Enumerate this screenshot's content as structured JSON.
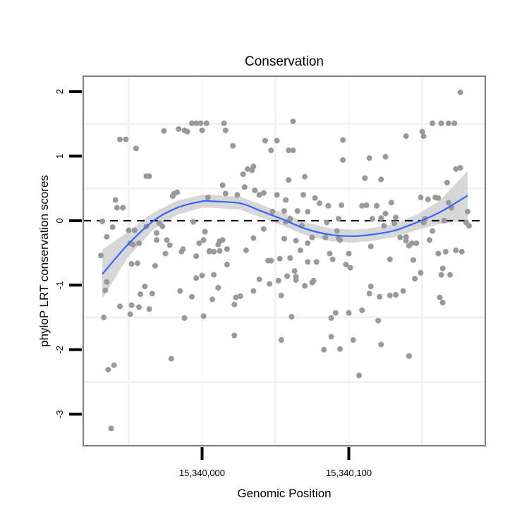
{
  "chart_data": {
    "type": "scatter",
    "title": "Conservation",
    "xlabel": "Genomic Position",
    "ylabel": "phyloP LRT conservation scores",
    "xlim": [
      15339919,
      15340193
    ],
    "ylim": [
      -3.49,
      2.24
    ],
    "x_ticks": [
      15340000,
      15340100
    ],
    "x_tick_labels": [
      "15,340,000",
      "15,340,100"
    ],
    "y_ticks": [
      2,
      1,
      0,
      -1,
      -2,
      -3
    ],
    "y_tick_labels": [
      "2",
      "1",
      "0",
      "-1",
      "-2",
      "-3"
    ],
    "x_minor_grid": [
      15339950,
      15340050,
      15340150
    ],
    "y_minor_grid": [
      1.5,
      0.5,
      -1.5,
      -2.5
    ],
    "grid": true,
    "reference_line": {
      "y": 0,
      "style": "dashed",
      "color": "#000000"
    },
    "colors": {
      "points": "#999999",
      "smooth": "#3366FF",
      "band": "#D3D3D3",
      "panel_border": "#808080"
    },
    "points": [
      [
        15339931,
        -0.54
      ],
      [
        15339933,
        -1.5
      ],
      [
        15339934,
        -1.08
      ],
      [
        15339935,
        -0.95
      ],
      [
        15339936,
        -2.31
      ],
      [
        15339940,
        -2.24
      ],
      [
        15339938,
        -3.22
      ],
      [
        15339939,
        -0.1
      ],
      [
        15339941,
        0.32
      ],
      [
        15339942,
        0.2
      ],
      [
        15339944,
        -1.33
      ],
      [
        15339944,
        1.26
      ],
      [
        15339948,
        1.26
      ],
      [
        15339946,
        0.2
      ],
      [
        15339950,
        -0.15
      ],
      [
        15339951,
        -0.35
      ],
      [
        15339952,
        -1.31
      ],
      [
        15339955,
        1.12
      ],
      [
        15339953,
        -0.37
      ],
      [
        15339954,
        -0.15
      ],
      [
        15339956,
        -0.66
      ],
      [
        15339957,
        -0.35
      ],
      [
        15339958,
        -1.14
      ],
      [
        15339961,
        -1.02
      ],
      [
        15339962,
        -0.09
      ],
      [
        15339962,
        0.69
      ],
      [
        15339964,
        0.69
      ],
      [
        15339966,
        -1.13
      ],
      [
        15339969,
        -0.3
      ],
      [
        15339969,
        -0.19
      ],
      [
        15339971,
        -0.04
      ],
      [
        15339973,
        -0.09
      ],
      [
        15339974,
        1.39
      ],
      [
        15339975,
        -0.51
      ],
      [
        15339976,
        -0.3
      ],
      [
        15339978,
        -0.38
      ],
      [
        15339979,
        -2.14
      ],
      [
        15339980,
        0.38
      ],
      [
        15339981,
        0.42
      ],
      [
        15339983,
        0.44
      ],
      [
        15339984,
        1.42
      ],
      [
        15339985,
        -1.09
      ],
      [
        15339986,
        -0.48
      ],
      [
        15339988,
        1.4
      ],
      [
        15339990,
        1.38
      ],
      [
        15339993,
        1.51
      ],
      [
        15339994,
        -0.02
      ],
      [
        15339996,
        1.51
      ],
      [
        15339996,
        -0.55
      ],
      [
        15339998,
        -0.35
      ],
      [
        15339999,
        1.51
      ],
      [
        15340000,
        1.4
      ],
      [
        15340001,
        -1.48
      ],
      [
        15340003,
        1.51
      ],
      [
        15340000,
        -0.85
      ],
      [
        15340002,
        -0.17
      ],
      [
        15340004,
        0.36
      ],
      [
        15340005,
        -0.48
      ],
      [
        15340008,
        -0.84
      ],
      [
        15340008,
        -0.48
      ],
      [
        15340007,
        -1.22
      ],
      [
        15340011,
        -1.04
      ],
      [
        15340012,
        -0.32
      ],
      [
        15340014,
        0.55
      ],
      [
        15340014,
        -0.3
      ],
      [
        15340015,
        1.51
      ],
      [
        15340016,
        1.4
      ],
      [
        15340016,
        0.42
      ],
      [
        15340017,
        -0.68
      ],
      [
        15340017,
        -0.44
      ],
      [
        15340022,
        -1.3
      ],
      [
        15340022,
        -1.78
      ],
      [
        15340021,
        1.16
      ],
      [
        15340026,
        -1.17
      ],
      [
        15340028,
        0.72
      ],
      [
        15340029,
        0.52
      ],
      [
        15340031,
        0.8
      ],
      [
        15340034,
        0.78
      ],
      [
        15340035,
        -1.09
      ],
      [
        15340036,
        0.47
      ],
      [
        15340042,
        0.43
      ],
      [
        15340047,
        -0.62
      ],
      [
        15340052,
        -0.93
      ],
      [
        15340054,
        -1.16
      ],
      [
        15340051,
        1.24
      ],
      [
        15340057,
        -0.02
      ],
      [
        15340057,
        0.32
      ],
      [
        15340059,
        1.09
      ],
      [
        15340060,
        -0.58
      ],
      [
        15340062,
        1.54
      ],
      [
        15340064,
        -0.31
      ],
      [
        15340064,
        -0.92
      ],
      [
        15340070,
        0.68
      ],
      [
        15340070,
        -1.01
      ],
      [
        15340072,
        -0.35
      ],
      [
        15340072,
        0.14
      ],
      [
        15340075,
        -0.26
      ],
      [
        15340076,
        -0.93
      ],
      [
        15340080,
        0.27
      ],
      [
        15340086,
        0.23
      ],
      [
        15340093,
        0.03
      ],
      [
        15340094,
        -1.99
      ],
      [
        15340094,
        -0.3
      ],
      [
        15340088,
        -1.8
      ],
      [
        15340103,
        -1.85
      ],
      [
        15340096,
        0.94
      ],
      [
        15340100,
        -0.51
      ],
      [
        15340101,
        -0.73
      ],
      [
        15340107,
        -2.4
      ],
      [
        15340109,
        -1.39
      ],
      [
        15340111,
        0.66
      ],
      [
        15340114,
        0.97
      ],
      [
        15340122,
        0.64
      ],
      [
        15340125,
        0.99
      ],
      [
        15340129,
        0.28
      ],
      [
        15340132,
        0.05
      ],
      [
        15340139,
        1.31
      ],
      [
        15340151,
        1.31
      ],
      [
        15340157,
        1.51
      ],
      [
        15340163,
        1.51
      ],
      [
        15340168,
        1.51
      ],
      [
        15340172,
        1.51
      ],
      [
        15340176,
        1.99
      ],
      [
        15340150,
        1.38
      ],
      [
        15340125,
        0.11
      ],
      [
        15340119,
        0.23
      ],
      [
        15340157,
        -0.16
      ],
      [
        15340165,
        0.0
      ],
      [
        15340173,
        -0.46
      ],
      [
        15340180,
        -0.03
      ],
      [
        15340182,
        -0.08
      ],
      [
        15340181,
        0.14
      ],
      [
        15340170,
        0.2
      ],
      [
        15340173,
        0.8
      ],
      [
        15340176,
        0.82
      ],
      [
        15340167,
        0.59
      ],
      [
        15340115,
        -0.4
      ],
      [
        15340128,
        -0.6
      ],
      [
        15340144,
        -0.61
      ],
      [
        15340146,
        -0.35
      ],
      [
        15340139,
        -0.31
      ],
      [
        15340155,
        -0.3
      ],
      [
        15340161,
        -0.51
      ],
      [
        15340164,
        -0.74
      ],
      [
        15340166,
        -0.48
      ],
      [
        15340177,
        -0.48
      ],
      [
        15340128,
        -1.16
      ],
      [
        15340132,
        -1.15
      ],
      [
        15340137,
        -1.09
      ],
      [
        15340149,
        -0.81
      ],
      [
        15340145,
        -0.9
      ],
      [
        15340163,
        -0.84
      ],
      [
        15340169,
        -0.84
      ],
      [
        15340162,
        -1.19
      ],
      [
        15340164,
        -1.27
      ],
      [
        15340115,
        -1.02
      ],
      [
        15340114,
        -1.13
      ],
      [
        15340121,
        -1.18
      ],
      [
        15340120,
        -1.55
      ],
      [
        15340122,
        -1.92
      ],
      [
        15340141,
        -2.1
      ],
      [
        15340152,
        0.03
      ],
      [
        15340149,
        0.36
      ],
      [
        15340154,
        0.33
      ],
      [
        15340109,
        0.23
      ],
      [
        15340112,
        0.24
      ],
      [
        15340116,
        0.03
      ],
      [
        15340122,
        0.04
      ],
      [
        15340124,
        -0.08
      ],
      [
        15340131,
        -0.04
      ],
      [
        15340135,
        -0.26
      ],
      [
        15340139,
        -0.25
      ],
      [
        15340141,
        -0.39
      ],
      [
        15340143,
        -0.35
      ],
      [
        15340151,
        -0.03
      ],
      [
        15340159,
        0.36
      ],
      [
        15340161,
        0.35
      ],
      [
        15340168,
        0.28
      ],
      [
        15340043,
        1.24
      ],
      [
        15340047,
        1.09
      ],
      [
        15340062,
        1.09
      ],
      [
        15340059,
        0.63
      ],
      [
        15340096,
        1.25
      ],
      [
        15340035,
        0.84
      ],
      [
        15340024,
        0.4
      ],
      [
        15340039,
        0.4
      ],
      [
        15340051,
        0.4
      ],
      [
        15340069,
        0.4
      ],
      [
        15340077,
        0.35
      ],
      [
        15340095,
        0.24
      ],
      [
        15340048,
        0.14
      ],
      [
        15340056,
        0.15
      ],
      [
        15340065,
        0.15
      ],
      [
        15340060,
        0.03
      ],
      [
        15340085,
        -0.03
      ],
      [
        15340068,
        -0.08
      ],
      [
        15340042,
        -0.13
      ],
      [
        15340092,
        -0.16
      ],
      [
        15340084,
        -0.26
      ],
      [
        15340093,
        -0.27
      ],
      [
        15340035,
        -0.27
      ],
      [
        15340056,
        -0.28
      ],
      [
        15340067,
        -0.46
      ],
      [
        15340030,
        -0.46
      ],
      [
        15340087,
        -0.51
      ],
      [
        15340089,
        -0.6
      ],
      [
        15340098,
        -0.68
      ],
      [
        15340045,
        -0.62
      ],
      [
        15340053,
        -0.59
      ],
      [
        15340072,
        -0.64
      ],
      [
        15340078,
        -0.64
      ],
      [
        15340063,
        -0.78
      ],
      [
        15340058,
        -0.86
      ],
      [
        15340064,
        -0.87
      ],
      [
        15340075,
        -0.96
      ],
      [
        15340039,
        -0.91
      ],
      [
        15340046,
        -0.98
      ],
      [
        15340023,
        -1.19
      ],
      [
        15340061,
        -1.49
      ],
      [
        15340088,
        -1.51
      ],
      [
        15340091,
        -1.43
      ],
      [
        15340100,
        -1.43
      ],
      [
        15340054,
        -1.85
      ],
      [
        15340083,
        -2.0
      ],
      [
        15339932,
        -0.01
      ],
      [
        15339935,
        -0.25
      ],
      [
        15339957,
        -1.34
      ],
      [
        15339951,
        -1.45
      ],
      [
        15339964,
        -1.37
      ],
      [
        15339988,
        -1.51
      ],
      [
        15339993,
        -1.18
      ],
      [
        15339996,
        -0.89
      ],
      [
        15339987,
        -0.44
      ],
      [
        15340001,
        -0.3
      ],
      [
        15340011,
        -0.37
      ],
      [
        15340005,
        -0.47
      ],
      [
        15340012,
        -0.47
      ],
      [
        15339968,
        -0.7
      ],
      [
        15339952,
        -0.67
      ]
    ],
    "smooth": {
      "x": [
        15339932,
        15339949,
        15339967,
        15339983,
        15340000,
        15340007,
        15340026,
        15340039,
        15340055,
        15340071,
        15340088,
        15340103,
        15340114,
        15340130,
        15340146,
        15340162,
        15340181
      ],
      "y": [
        -0.83,
        -0.38,
        0.0,
        0.2,
        0.3,
        0.3,
        0.27,
        0.16,
        0.02,
        -0.13,
        -0.22,
        -0.24,
        -0.22,
        -0.16,
        -0.03,
        0.13,
        0.39
      ],
      "ci_halfwidth": [
        0.38,
        0.2,
        0.13,
        0.11,
        0.1,
        0.1,
        0.1,
        0.1,
        0.1,
        0.1,
        0.1,
        0.1,
        0.1,
        0.1,
        0.12,
        0.18,
        0.38
      ]
    }
  }
}
